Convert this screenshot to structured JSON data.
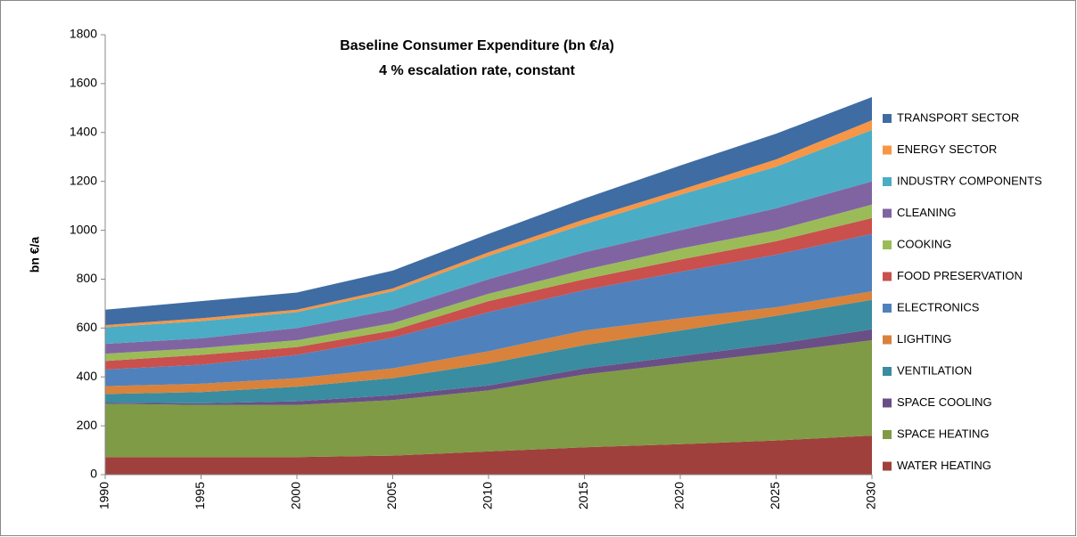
{
  "chart_data": {
    "type": "stacked_area",
    "title": "Baseline Consumer Expenditure (bn €/a)",
    "subtitle": "4 % escalation rate, constant",
    "y_label": "bn €/a",
    "x": [
      1990,
      1995,
      2000,
      2005,
      2010,
      2015,
      2020,
      2025,
      2030
    ],
    "xlim": [
      1990,
      2030
    ],
    "xticks": [
      1990,
      1995,
      2000,
      2005,
      2010,
      2015,
      2020,
      2025,
      2030
    ],
    "ylim": [
      0,
      1800
    ],
    "yticks": [
      0,
      200,
      400,
      600,
      800,
      1000,
      1200,
      1400,
      1600,
      1800
    ],
    "grid": false,
    "legend": "right",
    "series": [
      {
        "name": "WATER HEATING",
        "color": "#a0403d",
        "values": [
          72,
          72,
          72,
          78,
          95,
          112,
          125,
          140,
          160
        ]
      },
      {
        "name": "SPACE HEATING",
        "color": "#7f9b45",
        "values": [
          218,
          213,
          213,
          227,
          250,
          298,
          330,
          360,
          390
        ]
      },
      {
        "name": "SPACE COOLING",
        "color": "#6a4f86",
        "values": [
          5,
          7,
          15,
          20,
          20,
          25,
          30,
          35,
          45
        ]
      },
      {
        "name": "VENTILATION",
        "color": "#3a8ca0",
        "values": [
          35,
          46,
          60,
          70,
          90,
          95,
          105,
          115,
          120
        ]
      },
      {
        "name": "LIGHTING",
        "color": "#d9823b",
        "values": [
          32,
          34,
          35,
          40,
          50,
          60,
          50,
          35,
          35
        ]
      },
      {
        "name": "ELECTRONICS",
        "color": "#4f81bd",
        "values": [
          68,
          78,
          95,
          125,
          160,
          165,
          190,
          215,
          235
        ]
      },
      {
        "name": "FOOD PRESERVATION",
        "color": "#c9504c",
        "values": [
          35,
          40,
          32,
          30,
          45,
          45,
          50,
          55,
          65
        ]
      },
      {
        "name": "COOKING",
        "color": "#9bbb59",
        "values": [
          30,
          28,
          28,
          30,
          30,
          38,
          45,
          45,
          55
        ]
      },
      {
        "name": "CLEANING",
        "color": "#8064a2",
        "values": [
          40,
          40,
          50,
          55,
          60,
          72,
          75,
          90,
          95
        ]
      },
      {
        "name": "INDUSTRY COMPONENTS",
        "color": "#4bacc6",
        "values": [
          68,
          70,
          65,
          75,
          95,
          115,
          145,
          170,
          210
        ]
      },
      {
        "name": "ENERGY SECTOR",
        "color": "#f79646",
        "values": [
          9,
          12,
          10,
          12,
          15,
          20,
          20,
          30,
          40
        ]
      },
      {
        "name": "TRANSPORT SECTOR",
        "color": "#3f6ca3",
        "values": [
          63,
          70,
          70,
          73,
          75,
          85,
          100,
          105,
          95
        ]
      }
    ]
  }
}
